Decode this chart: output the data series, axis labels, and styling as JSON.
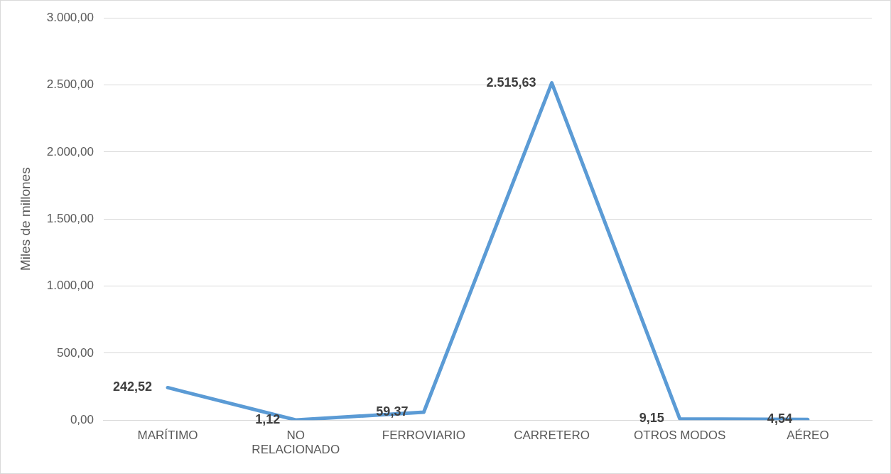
{
  "chart_data": {
    "type": "line",
    "ylabel": "Miles de millones",
    "categories": [
      "MARÍTIMO",
      "NO RELACIONADO",
      "FERROVIARIO",
      "CARRETERO",
      "OTROS MODOS",
      "AÉREO"
    ],
    "series": [
      {
        "color": "#5b9bd5",
        "values": [
          242.52,
          1.12,
          59.37,
          2515.63,
          9.15,
          4.54
        ],
        "value_labels": [
          "242,52",
          "1,12",
          "59,37",
          "2.515,63",
          "9,15",
          "4,54"
        ]
      }
    ],
    "ylim": [
      0,
      3000
    ],
    "yticks": [
      {
        "value": 0,
        "label": "0,00"
      },
      {
        "value": 500,
        "label": "500,00"
      },
      {
        "value": 1000,
        "label": "1.000,00"
      },
      {
        "value": 1500,
        "label": "1.500,00"
      },
      {
        "value": 2000,
        "label": "2.000,00"
      },
      {
        "value": 2500,
        "label": "2.500,00"
      },
      {
        "value": 3000,
        "label": "3.000,00"
      }
    ],
    "grid": "y",
    "legend": false,
    "marker": "none",
    "line_style": "solid"
  }
}
